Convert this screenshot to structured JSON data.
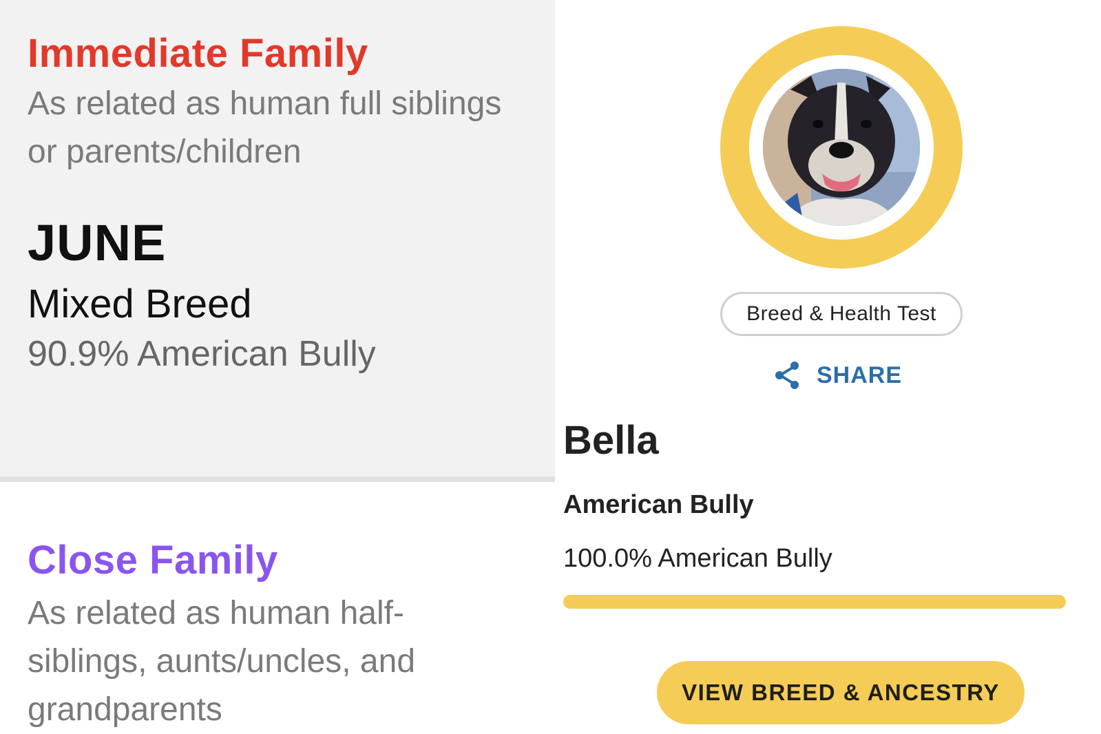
{
  "immediate_family": {
    "title": "Immediate Family",
    "description": "As related as human full siblings or parents/children",
    "match": {
      "name": "JUNE",
      "breed": "Mixed Breed",
      "percentage": "90.9% American Bully"
    }
  },
  "close_family": {
    "title": "Close Family",
    "description": "As related as human half-siblings, aunts/uncles, and grandparents"
  },
  "profile": {
    "test_badge": "Breed & Health Test",
    "share_label": "SHARE",
    "name": "Bella",
    "breed": "American Bully",
    "breed_percentage": "100.0% American Bully",
    "breed_fraction": 1.0,
    "cta_label": "VIEW BREED & ANCESTRY",
    "share_icon": "share-icon"
  },
  "colors": {
    "immediate_family": "#e1392b",
    "close_family": "#8a55ee",
    "accent_yellow": "#f5cc55",
    "share_blue": "#2c6ea8"
  }
}
